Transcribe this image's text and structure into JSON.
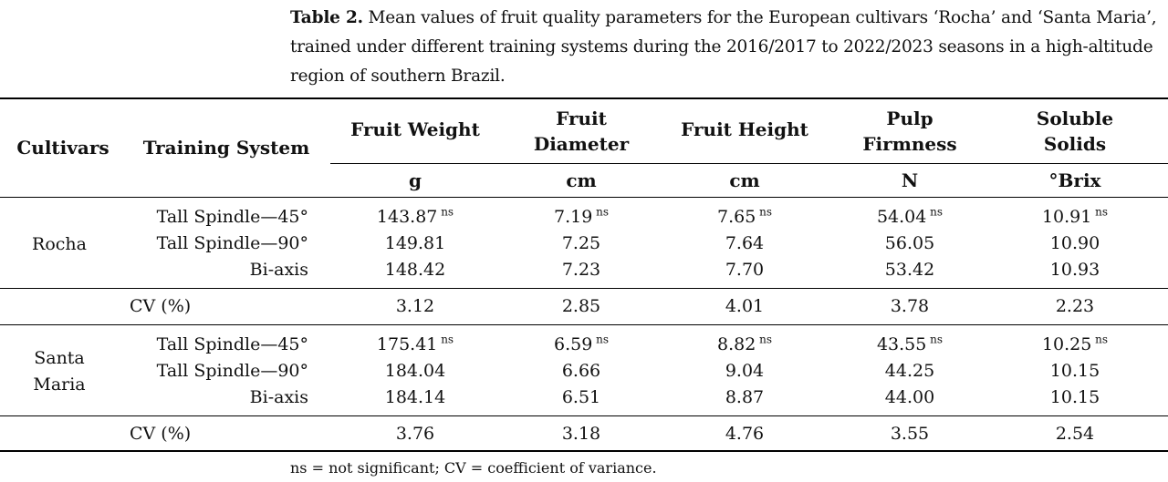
{
  "caption": {
    "label": "Table 2.",
    "text": " Mean values of fruit quality parameters for the European cultivars ‘Rocha’ and ‘Santa Maria’, trained under different training systems during the 2016/2017 to 2022/2023 seasons in a high-altitude region of southern Brazil."
  },
  "headers": {
    "cultivars": "Cultivars",
    "training_system": "Training System",
    "columns": [
      {
        "name": "Fruit Weight",
        "unit": "g"
      },
      {
        "name": "Fruit Diameter",
        "unit": "cm"
      },
      {
        "name": "Fruit Height",
        "unit": "cm"
      },
      {
        "name": "Pulp Firmness",
        "unit": "N"
      },
      {
        "name": "Soluble Solids",
        "unit": "°Brix"
      }
    ]
  },
  "groups": [
    {
      "cultivar_lines": [
        "Rocha"
      ],
      "rows": [
        {
          "system": "Tall Spindle—45°",
          "values": [
            "143.87",
            "7.19",
            "7.65",
            "54.04",
            "10.91"
          ],
          "sup": "ns"
        },
        {
          "system": "Tall Spindle—90°",
          "values": [
            "149.81",
            "7.25",
            "7.64",
            "56.05",
            "10.90"
          ],
          "sup": ""
        },
        {
          "system": "Bi-axis",
          "values": [
            "148.42",
            "7.23",
            "7.70",
            "53.42",
            "10.93"
          ],
          "sup": ""
        }
      ],
      "cv": {
        "label": "CV (%)",
        "values": [
          "3.12",
          "2.85",
          "4.01",
          "3.78",
          "2.23"
        ]
      }
    },
    {
      "cultivar_lines": [
        "Santa",
        "Maria"
      ],
      "rows": [
        {
          "system": "Tall Spindle—45°",
          "values": [
            "175.41",
            "6.59",
            "8.82",
            "43.55",
            "10.25"
          ],
          "sup": "ns"
        },
        {
          "system": "Tall Spindle—90°",
          "values": [
            "184.04",
            "6.66",
            "9.04",
            "44.25",
            "10.15"
          ],
          "sup": ""
        },
        {
          "system": "Bi-axis",
          "values": [
            "184.14",
            "6.51",
            "8.87",
            "44.00",
            "10.15"
          ],
          "sup": ""
        }
      ],
      "cv": {
        "label": "CV (%)",
        "values": [
          "3.76",
          "3.18",
          "4.76",
          "3.55",
          "2.54"
        ]
      }
    }
  ],
  "footnote": "ns = not significant; CV = coefficient of variance."
}
